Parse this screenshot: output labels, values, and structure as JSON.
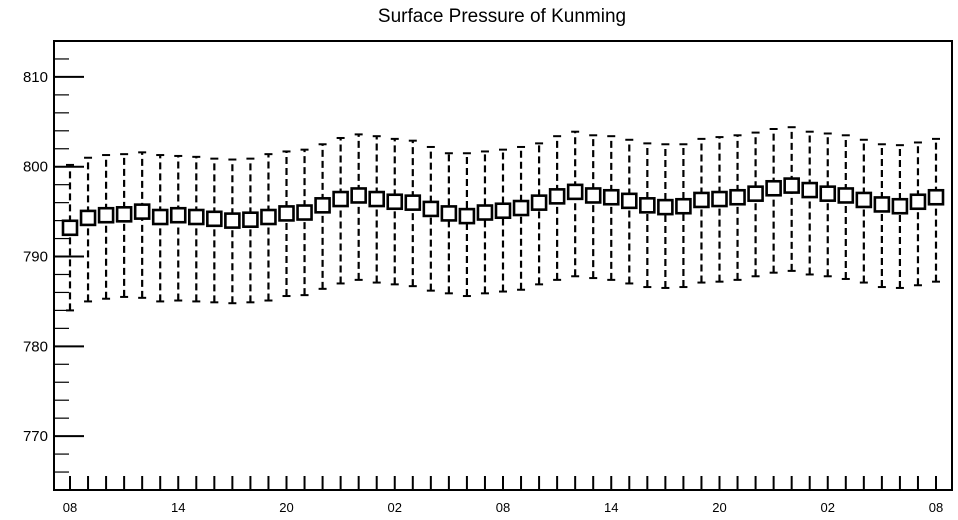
{
  "chart_data": {
    "type": "box",
    "title": "Surface Pressure of Kunming",
    "xlabel": "",
    "ylabel": "",
    "ylim": [
      764,
      814
    ],
    "y_ticks": [
      770,
      780,
      790,
      800,
      810
    ],
    "x_tick_labels": [
      "08",
      "14",
      "20",
      "02",
      "08",
      "14",
      "20",
      "02",
      "08"
    ],
    "x_tick_label_steps": [
      0,
      6,
      12,
      18,
      24,
      30,
      36,
      42,
      48
    ],
    "box_color": "#000000",
    "box_fill": "#ffffff",
    "series": [
      {
        "values": [
          793.2,
          794.3,
          794.6,
          794.7,
          795.0,
          794.4,
          794.6,
          794.4,
          794.2,
          794.0,
          794.1,
          794.4,
          794.8,
          794.9,
          795.7,
          796.4,
          796.8,
          796.4,
          796.1,
          796.0,
          795.3,
          794.8,
          794.5,
          794.9,
          795.1,
          795.4,
          796.0,
          796.7,
          797.2,
          796.8,
          796.6,
          796.2,
          795.7,
          795.5,
          795.6,
          796.3,
          796.4,
          796.6,
          797.0,
          797.6,
          797.9,
          797.4,
          797.0,
          796.8,
          796.3,
          795.8,
          795.6,
          796.1,
          796.6
        ],
        "whisker_low": [
          784.0,
          785.0,
          785.3,
          785.5,
          785.4,
          785.0,
          785.1,
          785.0,
          784.9,
          784.8,
          784.9,
          785.1,
          785.6,
          785.7,
          786.4,
          787.0,
          787.4,
          787.1,
          786.9,
          786.7,
          786.2,
          785.9,
          785.6,
          785.9,
          786.1,
          786.3,
          786.9,
          787.4,
          787.8,
          787.6,
          787.4,
          787.0,
          786.6,
          786.5,
          786.6,
          787.1,
          787.2,
          787.4,
          787.8,
          788.2,
          788.4,
          788.0,
          787.8,
          787.5,
          787.1,
          786.6,
          786.5,
          786.8,
          787.2
        ],
        "whisker_high": [
          800.2,
          801.0,
          801.3,
          801.4,
          801.6,
          801.3,
          801.2,
          801.1,
          800.9,
          800.8,
          800.9,
          801.4,
          801.7,
          801.9,
          802.5,
          803.2,
          803.6,
          803.4,
          803.1,
          802.9,
          802.2,
          801.5,
          801.5,
          801.7,
          801.9,
          802.2,
          802.6,
          803.4,
          803.9,
          803.5,
          803.4,
          803.0,
          802.6,
          802.5,
          802.5,
          803.1,
          803.3,
          803.5,
          803.8,
          804.2,
          804.4,
          803.9,
          803.7,
          803.5,
          803.0,
          802.5,
          802.4,
          802.7,
          803.1
        ]
      }
    ]
  }
}
